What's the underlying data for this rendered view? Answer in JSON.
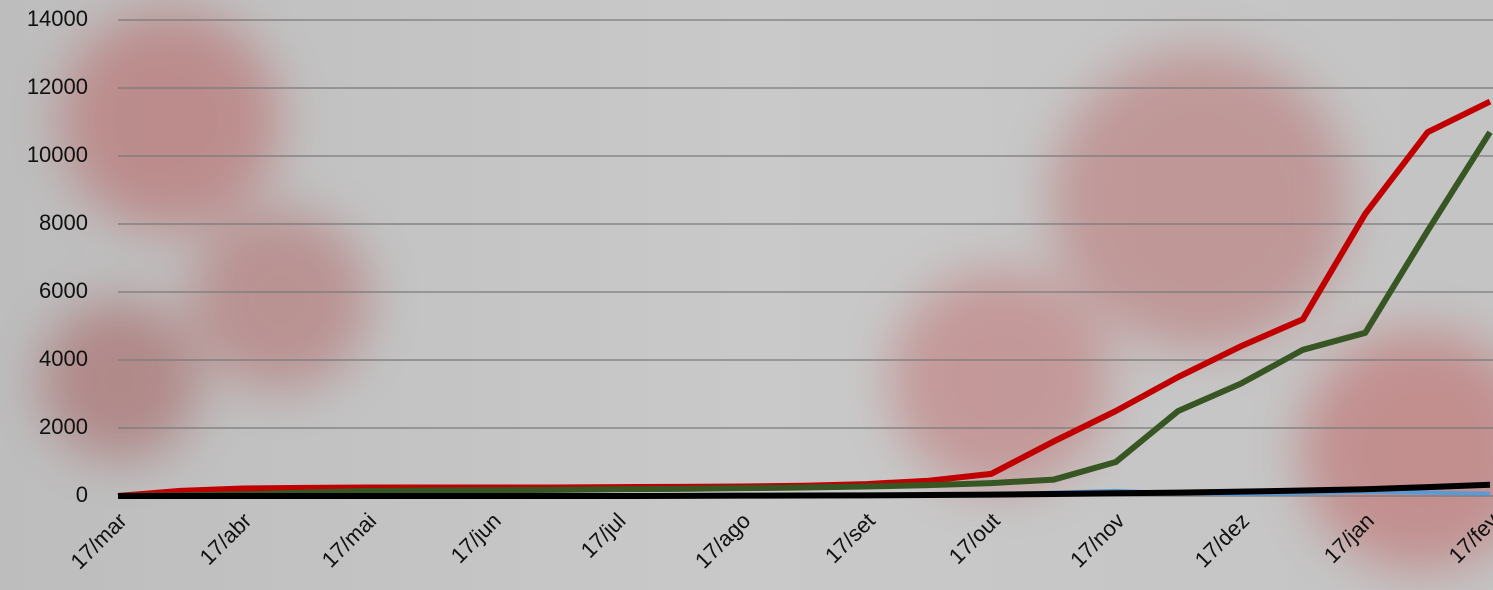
{
  "chart_data": {
    "type": "line",
    "categories": [
      "17/mar",
      null,
      "17/abr",
      null,
      "17/mai",
      null,
      "17/jun",
      null,
      "17/jul",
      null,
      "17/ago",
      null,
      "17/set",
      null,
      "17/out",
      null,
      "17/nov",
      null,
      "17/dez",
      null,
      "17/jan",
      null,
      "17/fev"
    ],
    "series": [
      {
        "color": "#c00000",
        "values": [
          0,
          150,
          220,
          240,
          250,
          250,
          250,
          250,
          260,
          270,
          280,
          300,
          350,
          450,
          650,
          1600,
          2500,
          3500,
          4400,
          5200,
          8300,
          10700,
          11600
        ]
      },
      {
        "color": "#375623",
        "values": [
          0,
          20,
          50,
          100,
          150,
          160,
          170,
          180,
          200,
          210,
          230,
          250,
          280,
          320,
          380,
          480,
          1000,
          2500,
          3300,
          4300,
          4800,
          7800,
          10700
        ]
      },
      {
        "color": "#5b9bd5",
        "values": [
          0,
          0,
          0,
          0,
          0,
          0,
          0,
          0,
          0,
          0,
          0,
          0,
          10,
          20,
          30,
          100,
          150,
          80,
          60,
          80,
          120,
          100,
          70
        ]
      },
      {
        "color": "#000000",
        "values": [
          0,
          0,
          0,
          0,
          0,
          0,
          0,
          0,
          0,
          5,
          10,
          15,
          20,
          30,
          40,
          60,
          80,
          100,
          130,
          160,
          200,
          260,
          330
        ]
      }
    ],
    "ylim": [
      0,
      14000
    ],
    "yticks": [
      0,
      2000,
      4000,
      6000,
      8000,
      10000,
      12000,
      14000
    ],
    "grid": true
  }
}
